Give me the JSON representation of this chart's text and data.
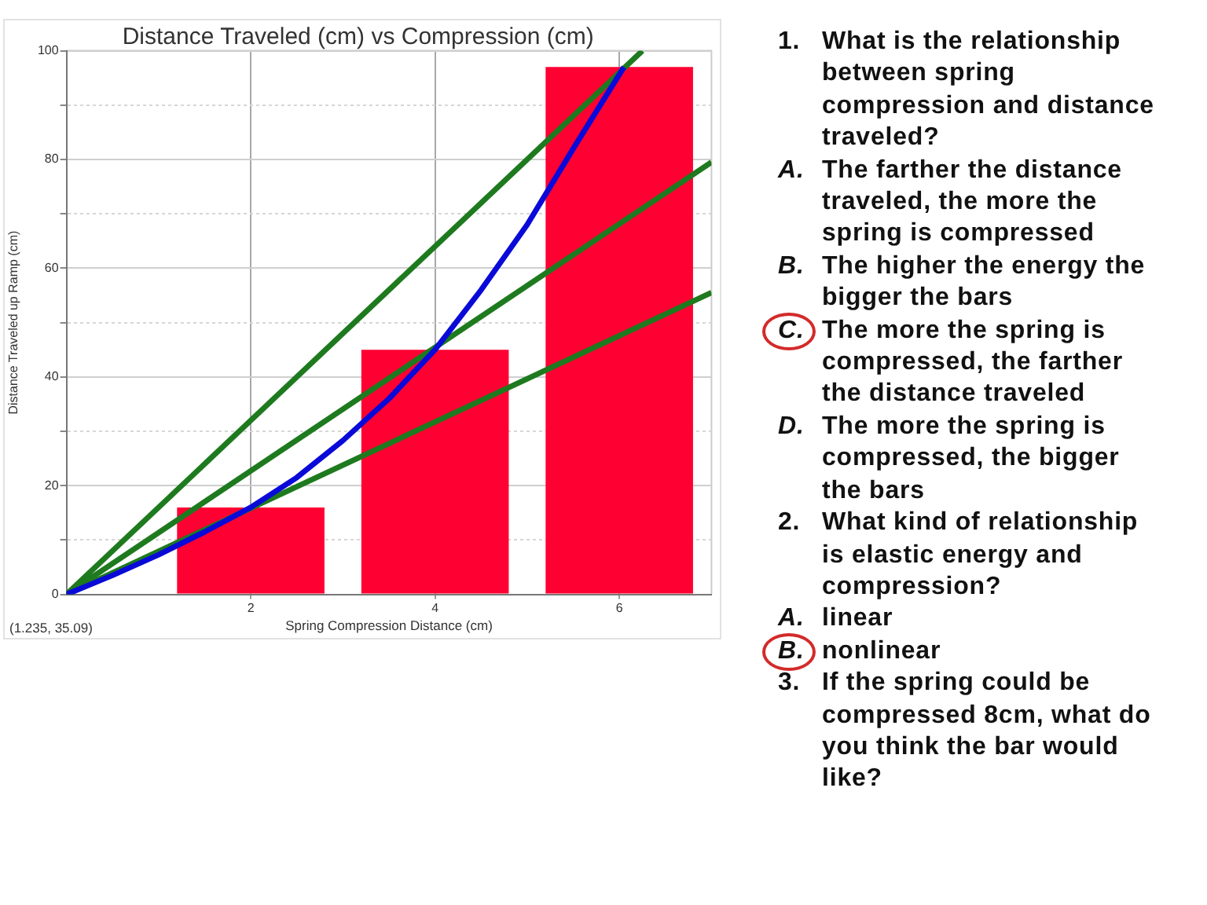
{
  "chart_data": [
    {
      "type": "bar",
      "title": "Distance Traveled (cm) vs Compression (cm)",
      "xlabel": "Spring Compression Distance (cm)",
      "ylabel": "Distance Traveled up Ramp (cm)",
      "x": [
        2,
        4,
        6
      ],
      "series": [
        {
          "color": "#ff0033",
          "values": [
            16,
            45,
            97
          ]
        },
        {
          "type": "line",
          "color": "#1e7a1e",
          "x": [
            0,
            6.25
          ],
          "values": [
            0,
            100
          ]
        },
        {
          "type": "line",
          "color": "#1e7a1e",
          "x": [
            0,
            7
          ],
          "values": [
            0,
            79.5
          ]
        },
        {
          "type": "line",
          "color": "#1e7a1e",
          "x": [
            0,
            7
          ],
          "values": [
            0,
            55.5
          ]
        },
        {
          "type": "line",
          "color": "#0a0ad8",
          "x": [
            0,
            0.5,
            1,
            1.5,
            2,
            2.5,
            3,
            3.5,
            4,
            4.5,
            5,
            5.5,
            6.05
          ],
          "values": [
            0,
            3.5,
            7.3,
            11.5,
            16,
            21.5,
            28.3,
            36,
            45,
            56,
            68,
            82,
            97
          ]
        }
      ],
      "xlim": [
        0,
        7
      ],
      "xticks": [
        2,
        4,
        6
      ],
      "ylim": [
        0,
        100
      ],
      "yticks": [
        0,
        {
          "value": 10,
          "label": null
        },
        20,
        {
          "value": 30,
          "label": null
        },
        40,
        {
          "value": 50,
          "label": null
        },
        60,
        {
          "value": 70,
          "label": null
        },
        80,
        {
          "value": 90,
          "label": null
        },
        100
      ],
      "grid": true,
      "annotations": [
        "(1.235, 35.09)"
      ]
    },
    {
      "type": "other",
      "annotations": [
        "1. What is the relationship between spring compression and distance traveled?",
        "A. The farther the distance traveled, the more the spring is compressed",
        "B. The higher the energy the bigger the bars",
        "C. The more the spring is compressed, the farther the distance traveled",
        "D. The more the spring is compressed, the bigger the bars",
        "2. What kind of relationship is elastic energy and compression?",
        "A. linear",
        "B. nonlinear",
        "3. If the spring could be compressed 8cm, what do you think the bar would like?"
      ]
    }
  ]
}
